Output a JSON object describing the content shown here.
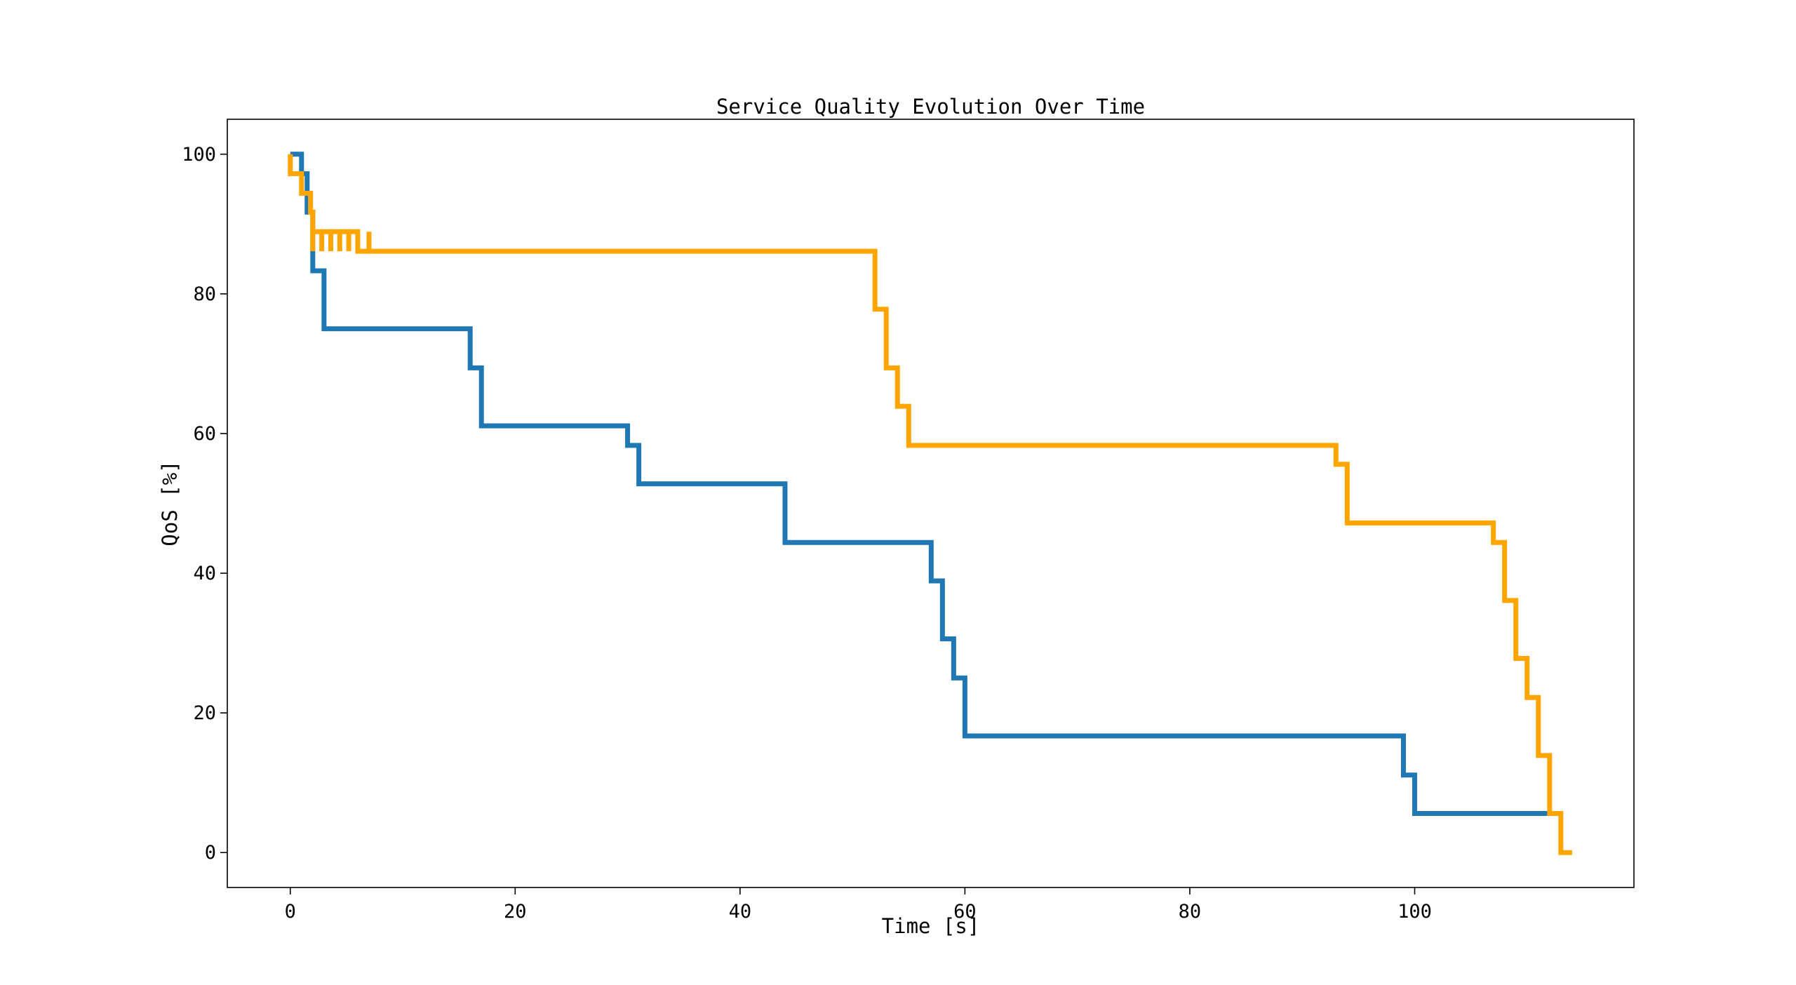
{
  "chart_data": {
    "type": "line",
    "step": "post",
    "title": "Service Quality Evolution Over Time",
    "xlabel": "Time [s]",
    "ylabel": "QoS [%]",
    "xlim": [
      -5.6,
      119.5
    ],
    "ylim": [
      -5,
      105
    ],
    "xticks": [
      0,
      20,
      40,
      60,
      80,
      100
    ],
    "yticks": [
      0,
      20,
      40,
      60,
      80,
      100
    ],
    "grid": false,
    "legend": "none",
    "series": [
      {
        "color": "#1f77b4",
        "x": [
          0,
          1,
          1.5,
          2,
          3,
          16,
          17,
          30,
          31,
          44,
          57,
          58,
          59,
          60,
          99,
          100,
          111.9
        ],
        "y": [
          100,
          97.2,
          91.7,
          83.3,
          75,
          69.4,
          61.1,
          58.3,
          52.8,
          44.4,
          38.9,
          30.6,
          25,
          16.7,
          11.1,
          5.6,
          5.6
        ]
      },
      {
        "color": "#ffa500",
        "x": [
          0,
          0,
          1,
          1.8,
          2,
          2,
          2.8,
          2.8,
          3.6,
          3.6,
          4.4,
          4.4,
          5.2,
          5.2,
          6,
          6,
          7,
          7,
          52,
          53,
          54,
          55,
          93,
          94,
          107,
          108,
          109,
          110,
          111,
          112,
          113,
          114
        ],
        "y": [
          100,
          97.2,
          94.4,
          91.7,
          86.1,
          88.9,
          86.1,
          88.9,
          86.1,
          88.9,
          86.1,
          88.9,
          86.1,
          88.9,
          86.1,
          86.1,
          88.9,
          86.1,
          77.8,
          69.4,
          63.9,
          58.3,
          55.6,
          47.2,
          44.4,
          36.1,
          27.8,
          22.2,
          13.9,
          5.6,
          0,
          0
        ]
      }
    ]
  }
}
